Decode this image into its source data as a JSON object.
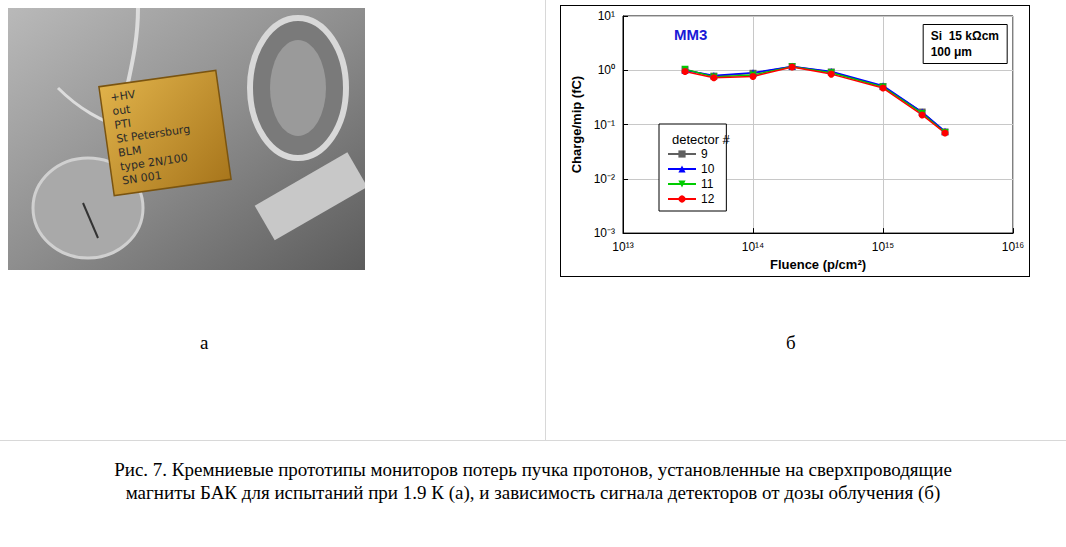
{
  "panel_labels": [
    "а",
    "б"
  ],
  "caption": "Рис. 7. Кремниевые прототипы мониторов потерь пучка протонов, установленные на сверхпроводящие магниты БАК для испытаний при 1.9 К (а), и зависимость сигнала детекторов от дозы облучения (б)",
  "photo": {
    "board_text": [
      "+HV",
      "out",
      "PTI",
      "St Petersburg",
      "BLM",
      "type 2N/100",
      "SN 001"
    ]
  },
  "chart_data": {
    "type": "line",
    "title": "MM3",
    "annotations": [
      "Si  15 kΩcm",
      "100 μm"
    ],
    "x_label": "Fluence (p/cm²)",
    "y_label": "Charge/mip (fC)",
    "x": [
      30000000000000.0,
      50000000000000.0,
      100000000000000.0,
      200000000000000.0,
      400000000000000.0,
      1000000000000000.0,
      2000000000000000.0,
      3000000000000000.0
    ],
    "series": [
      {
        "name": "9",
        "color": "#606060",
        "marker": "square",
        "line_style": "solid",
        "values": [
          1.02,
          0.78,
          0.88,
          1.17,
          0.93,
          0.5,
          0.17,
          0.073
        ]
      },
      {
        "name": "10",
        "color": "#0000ff",
        "marker": "triangle",
        "line_style": "solid",
        "values": [
          1.0,
          0.8,
          0.9,
          1.18,
          0.95,
          0.52,
          0.17,
          0.075
        ]
      },
      {
        "name": "11",
        "color": "#00cc00",
        "marker": "triangle-down",
        "line_style": "solid",
        "values": [
          1.05,
          0.75,
          0.82,
          1.16,
          0.9,
          0.49,
          0.16,
          0.071
        ]
      },
      {
        "name": "12",
        "color": "#ff0000",
        "marker": "circle",
        "line_style": "solid",
        "values": [
          0.95,
          0.73,
          0.77,
          1.15,
          0.85,
          0.47,
          0.15,
          0.07
        ]
      }
    ],
    "xlim": [
      10000000000000.0,
      1e+16
    ],
    "xticks": [
      {
        "value": 10000000000000.0,
        "label": "10¹³"
      },
      {
        "value": 100000000000000.0,
        "label": "10¹⁴"
      },
      {
        "value": 1000000000000000.0,
        "label": "10¹⁵"
      },
      {
        "value": 1e+16,
        "label": "10¹⁶"
      }
    ],
    "ylim": [
      0.001,
      10
    ],
    "yticks": [
      {
        "value": 0.001,
        "label": "10⁻³"
      },
      {
        "value": 0.01,
        "label": "10⁻²"
      },
      {
        "value": 0.1,
        "label": "10⁻¹"
      },
      {
        "value": 1,
        "label": "10⁰"
      },
      {
        "value": 10,
        "label": "10¹"
      }
    ],
    "log": true,
    "grid": true,
    "legend": "left",
    "legend_title": "detector #"
  }
}
